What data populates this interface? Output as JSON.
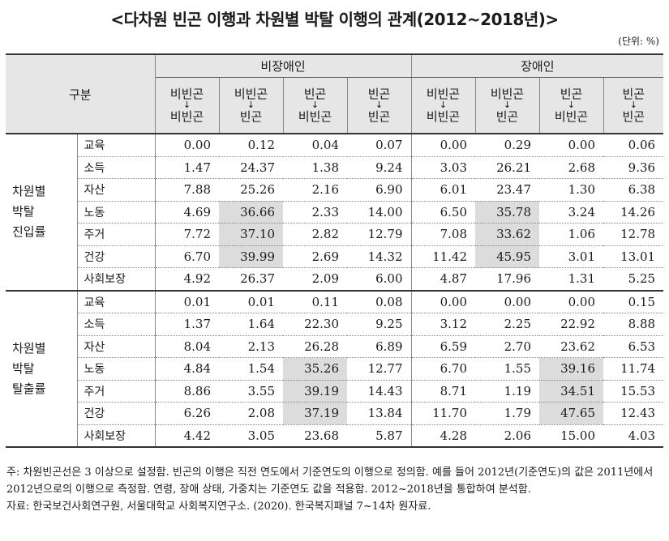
{
  "title": "<다차원 빈곤 이행과 차원별 박탈 이행의 관계(2012~2018년)>",
  "unit": "(단위: %)",
  "header": {
    "gubun": "구분",
    "groups": [
      "비장애인",
      "장애인"
    ],
    "cols": [
      {
        "top": "비빈곤",
        "arrow": "↓",
        "bottom": "비빈곤"
      },
      {
        "top": "비빈곤",
        "arrow": "↓",
        "bottom": "빈곤"
      },
      {
        "top": "빈곤",
        "arrow": "↓",
        "bottom": "비빈곤"
      },
      {
        "top": "빈곤",
        "arrow": "↓",
        "bottom": "빈곤"
      },
      {
        "top": "비빈곤",
        "arrow": "↓",
        "bottom": "비빈곤"
      },
      {
        "top": "비빈곤",
        "arrow": "↓",
        "bottom": "빈곤"
      },
      {
        "top": "빈곤",
        "arrow": "↓",
        "bottom": "비빈곤"
      },
      {
        "top": "빈곤",
        "arrow": "↓",
        "bottom": "빈곤"
      }
    ]
  },
  "sections": [
    {
      "label_lines": [
        "차원별",
        "박탈",
        "진입률"
      ],
      "rows": [
        {
          "name": "교육",
          "values": [
            "0.00",
            "0.12",
            "0.04",
            "0.07",
            "0.00",
            "0.29",
            "0.00",
            "0.06"
          ]
        },
        {
          "name": "소득",
          "values": [
            "1.47",
            "24.37",
            "1.38",
            "9.24",
            "3.03",
            "26.21",
            "2.68",
            "9.36"
          ]
        },
        {
          "name": "자산",
          "values": [
            "7.88",
            "25.26",
            "2.16",
            "6.90",
            "6.01",
            "23.47",
            "1.30",
            "6.38"
          ]
        },
        {
          "name": "노동",
          "values": [
            "4.69",
            "36.66",
            "2.33",
            "14.00",
            "6.50",
            "35.78",
            "3.24",
            "14.26"
          ]
        },
        {
          "name": "주거",
          "values": [
            "7.72",
            "37.10",
            "2.82",
            "12.79",
            "7.08",
            "33.62",
            "1.06",
            "12.78"
          ]
        },
        {
          "name": "건강",
          "values": [
            "6.70",
            "39.99",
            "2.69",
            "14.32",
            "11.42",
            "45.95",
            "3.01",
            "13.01"
          ]
        },
        {
          "name": "사회보장",
          "values": [
            "4.92",
            "26.37",
            "2.09",
            "6.00",
            "4.87",
            "17.96",
            "1.31",
            "5.25"
          ]
        }
      ]
    },
    {
      "label_lines": [
        "차원별",
        "박탈",
        "탈출률"
      ],
      "rows": [
        {
          "name": "교육",
          "values": [
            "0.01",
            "0.01",
            "0.11",
            "0.08",
            "0.00",
            "0.00",
            "0.00",
            "0.15"
          ]
        },
        {
          "name": "소득",
          "values": [
            "1.37",
            "1.64",
            "22.30",
            "9.25",
            "3.12",
            "2.25",
            "22.92",
            "8.88"
          ]
        },
        {
          "name": "자산",
          "values": [
            "8.04",
            "2.13",
            "26.28",
            "6.89",
            "6.59",
            "2.70",
            "23.62",
            "6.53"
          ]
        },
        {
          "name": "노동",
          "values": [
            "4.84",
            "1.54",
            "35.26",
            "12.77",
            "6.70",
            "1.55",
            "39.16",
            "11.74"
          ]
        },
        {
          "name": "주거",
          "values": [
            "8.86",
            "3.55",
            "39.19",
            "14.43",
            "8.71",
            "1.19",
            "34.51",
            "15.53"
          ]
        },
        {
          "name": "건강",
          "values": [
            "6.26",
            "2.08",
            "37.19",
            "13.84",
            "11.70",
            "1.79",
            "47.65",
            "12.43"
          ]
        },
        {
          "name": "사회보장",
          "values": [
            "4.42",
            "3.05",
            "23.68",
            "5.87",
            "4.28",
            "2.06",
            "15.00",
            "4.03"
          ]
        }
      ]
    }
  ],
  "highlight_color": "#dcdcdc",
  "notes": [
    "주: 차원빈곤선은 3 이상으로 설정함. 빈곤의 이행은 직전 연도에서 기준연도의 이행으로 정의함. 예를 들어 2012년(기준연도)의 값은 2011년에서 2012년으로의 이행으로 측정함. 연령, 장애 상태, 가중치는 기준연도 값을 적용함. 2012~2018년을 통합하여 분석함.",
    "자료: 한국보건사회연구원, 서울대학교 사회복지연구소. (2020). 한국복지패널 7~14차 원자료."
  ]
}
